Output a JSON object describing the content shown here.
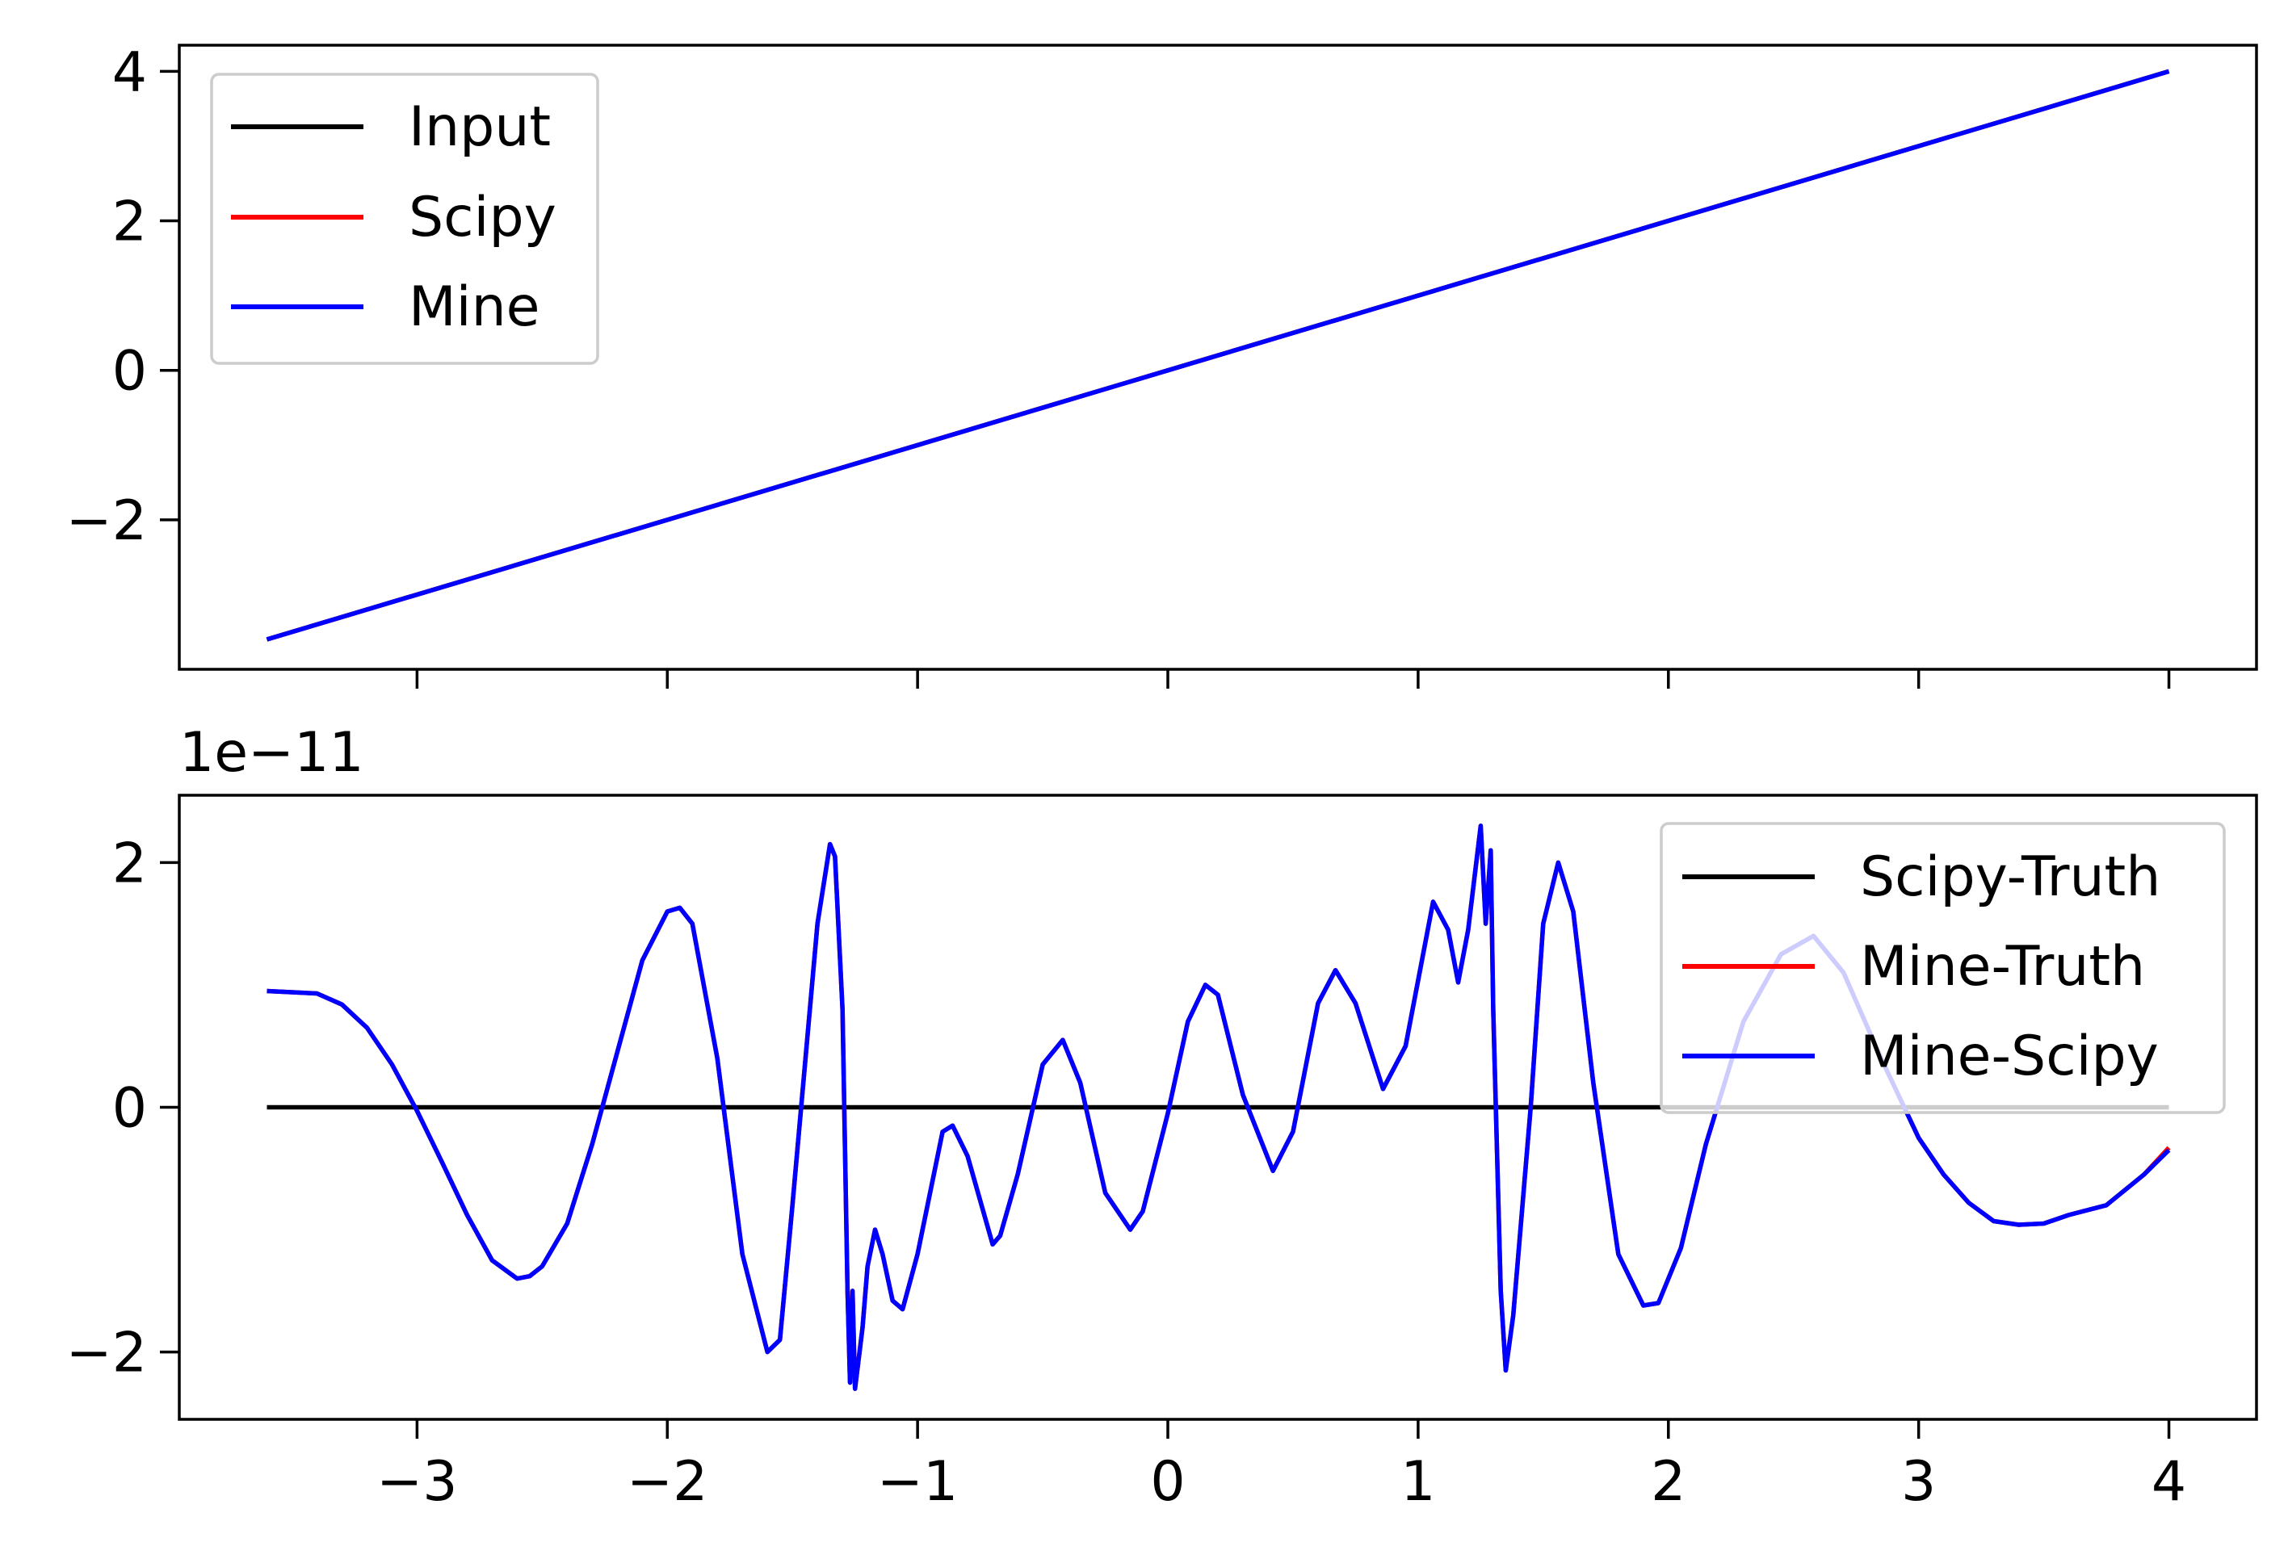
{
  "chart_data": [
    {
      "type": "line",
      "panel": "top",
      "xlim": [
        -3.95,
        4.35
      ],
      "ylim": [
        -4.0,
        4.35
      ],
      "xticks": [
        -3,
        -2,
        -1,
        0,
        1,
        2,
        3,
        4
      ],
      "show_xtick_labels": false,
      "yticks": [
        {
          "value": -2,
          "label": "−2"
        },
        {
          "value": 0,
          "label": "0"
        },
        {
          "value": 2,
          "label": "2"
        },
        {
          "value": 4,
          "label": "4"
        }
      ],
      "grid": false,
      "legend_position": "upper left",
      "series": [
        {
          "name": "Input",
          "color": "#000000",
          "x": [
            -3.6,
            4.0
          ],
          "y": [
            -3.6,
            4.0
          ]
        },
        {
          "name": "Scipy",
          "color": "#ff0000",
          "x": [
            -3.6,
            4.0
          ],
          "y": [
            -3.6,
            4.0
          ]
        },
        {
          "name": "Mine",
          "color": "#0000ff",
          "x": [
            -3.6,
            4.0
          ],
          "y": [
            -3.6,
            4.0
          ]
        }
      ]
    },
    {
      "type": "line",
      "panel": "bottom",
      "offset_label": "1e−11",
      "xlim": [
        -3.95,
        4.35
      ],
      "ylim": [
        -2.55,
        2.55
      ],
      "xticks": [
        {
          "value": -3,
          "label": "−3"
        },
        {
          "value": -2,
          "label": "−2"
        },
        {
          "value": -1,
          "label": "−1"
        },
        {
          "value": 0,
          "label": "0"
        },
        {
          "value": 1,
          "label": "1"
        },
        {
          "value": 2,
          "label": "2"
        },
        {
          "value": 3,
          "label": "3"
        },
        {
          "value": 4,
          "label": "4"
        }
      ],
      "yticks": [
        {
          "value": -2,
          "label": "−2"
        },
        {
          "value": 0,
          "label": "0"
        },
        {
          "value": 2,
          "label": "2"
        }
      ],
      "grid": false,
      "legend_position": "upper right",
      "series": [
        {
          "name": "Scipy-Truth",
          "color": "#000000",
          "x": [
            -3.6,
            4.0
          ],
          "y": [
            0,
            0
          ]
        },
        {
          "name": "Mine-Truth",
          "color": "#ff0000",
          "x": [
            -3.6,
            -3.4,
            -3.3,
            -3.2,
            -3.1,
            -3.0,
            -2.9,
            -2.8,
            -2.7,
            -2.6,
            -2.55,
            -2.5,
            -2.4,
            -2.3,
            -2.2,
            -2.1,
            -2.0,
            -1.95,
            -1.9,
            -1.8,
            -1.7,
            -1.6,
            -1.55,
            -1.5,
            -1.4,
            -1.35,
            -1.33,
            -1.3,
            -1.28,
            -1.27,
            -1.26,
            -1.25,
            -1.22,
            -1.2,
            -1.17,
            -1.14,
            -1.1,
            -1.06,
            -1.0,
            -0.9,
            -0.86,
            -0.8,
            -0.7,
            -0.67,
            -0.6,
            -0.5,
            -0.42,
            -0.35,
            -0.25,
            -0.15,
            -0.1,
            0.0,
            0.08,
            0.15,
            0.2,
            0.3,
            0.42,
            0.5,
            0.6,
            0.67,
            0.75,
            0.86,
            0.95,
            1.06,
            1.12,
            1.16,
            1.2,
            1.25,
            1.27,
            1.29,
            1.3,
            1.33,
            1.35,
            1.38,
            1.45,
            1.5,
            1.56,
            1.62,
            1.7,
            1.8,
            1.9,
            1.96,
            2.05,
            2.15,
            2.3,
            2.45,
            2.58,
            2.7,
            2.85,
            3.0,
            3.1,
            3.2,
            3.3,
            3.4,
            3.5,
            3.6,
            3.75,
            3.9,
            4.0
          ],
          "y": [
            0.95,
            0.93,
            0.84,
            0.65,
            0.35,
            -0.03,
            -0.45,
            -0.88,
            -1.25,
            -1.4,
            -1.38,
            -1.3,
            -0.95,
            -0.3,
            0.45,
            1.2,
            1.6,
            1.63,
            1.5,
            0.4,
            -1.2,
            -2.0,
            -1.9,
            -0.8,
            1.5,
            2.15,
            2.05,
            0.8,
            -1.5,
            -2.25,
            -1.5,
            -2.3,
            -1.8,
            -1.3,
            -1.0,
            -1.2,
            -1.58,
            -1.65,
            -1.2,
            -0.2,
            -0.15,
            -0.4,
            -1.12,
            -1.05,
            -0.55,
            0.35,
            0.55,
            0.2,
            -0.7,
            -1.0,
            -0.85,
            -0.05,
            0.7,
            1.0,
            0.92,
            0.1,
            -0.52,
            -0.2,
            0.85,
            1.12,
            0.85,
            0.15,
            0.5,
            1.68,
            1.45,
            1.02,
            1.45,
            2.3,
            1.5,
            2.1,
            0.8,
            -1.5,
            -2.15,
            -1.7,
            0.0,
            1.5,
            2.0,
            1.6,
            0.2,
            -1.2,
            -1.62,
            -1.6,
            -1.15,
            -0.3,
            0.7,
            1.25,
            1.4,
            1.1,
            0.4,
            -0.25,
            -0.55,
            -0.78,
            -0.93,
            -0.96,
            -0.95,
            -0.88,
            -0.8,
            -0.55,
            -0.33
          ]
        },
        {
          "name": "Mine-Scipy",
          "color": "#0000ff",
          "x": [
            -3.6,
            -3.4,
            -3.3,
            -3.2,
            -3.1,
            -3.0,
            -2.9,
            -2.8,
            -2.7,
            -2.6,
            -2.55,
            -2.5,
            -2.4,
            -2.3,
            -2.2,
            -2.1,
            -2.0,
            -1.95,
            -1.9,
            -1.8,
            -1.7,
            -1.6,
            -1.55,
            -1.5,
            -1.4,
            -1.35,
            -1.33,
            -1.3,
            -1.28,
            -1.27,
            -1.26,
            -1.25,
            -1.22,
            -1.2,
            -1.17,
            -1.14,
            -1.1,
            -1.06,
            -1.0,
            -0.9,
            -0.86,
            -0.8,
            -0.7,
            -0.67,
            -0.6,
            -0.5,
            -0.42,
            -0.35,
            -0.25,
            -0.15,
            -0.1,
            0.0,
            0.08,
            0.15,
            0.2,
            0.3,
            0.42,
            0.5,
            0.6,
            0.67,
            0.75,
            0.86,
            0.95,
            1.06,
            1.12,
            1.16,
            1.2,
            1.25,
            1.27,
            1.29,
            1.3,
            1.33,
            1.35,
            1.38,
            1.45,
            1.5,
            1.56,
            1.62,
            1.7,
            1.8,
            1.9,
            1.96,
            2.05,
            2.15,
            2.3,
            2.45,
            2.58,
            2.7,
            2.85,
            3.0,
            3.1,
            3.2,
            3.3,
            3.4,
            3.5,
            3.6,
            3.75,
            3.9,
            4.0
          ],
          "y": [
            0.95,
            0.93,
            0.84,
            0.65,
            0.35,
            -0.03,
            -0.45,
            -0.88,
            -1.25,
            -1.4,
            -1.38,
            -1.3,
            -0.95,
            -0.3,
            0.45,
            1.2,
            1.6,
            1.63,
            1.5,
            0.4,
            -1.2,
            -2.0,
            -1.9,
            -0.8,
            1.5,
            2.15,
            2.05,
            0.8,
            -1.5,
            -2.25,
            -1.5,
            -2.3,
            -1.8,
            -1.3,
            -1.0,
            -1.2,
            -1.58,
            -1.65,
            -1.2,
            -0.2,
            -0.15,
            -0.4,
            -1.12,
            -1.05,
            -0.55,
            0.35,
            0.55,
            0.2,
            -0.7,
            -1.0,
            -0.85,
            -0.05,
            0.7,
            1.0,
            0.92,
            0.1,
            -0.52,
            -0.2,
            0.85,
            1.12,
            0.85,
            0.15,
            0.5,
            1.68,
            1.45,
            1.02,
            1.45,
            2.3,
            1.5,
            2.1,
            0.8,
            -1.5,
            -2.15,
            -1.7,
            0.0,
            1.5,
            2.0,
            1.6,
            0.2,
            -1.2,
            -1.62,
            -1.6,
            -1.15,
            -0.3,
            0.7,
            1.25,
            1.4,
            1.1,
            0.4,
            -0.25,
            -0.55,
            -0.78,
            -0.93,
            -0.96,
            -0.95,
            -0.88,
            -0.8,
            -0.55,
            -0.35
          ]
        }
      ]
    }
  ]
}
